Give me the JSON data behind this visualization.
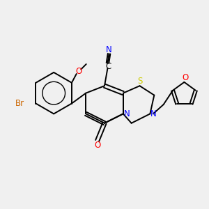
{
  "background_color": "#f0f0f0",
  "bond_color": "#000000",
  "atom_colors": {
    "N": "#0000ff",
    "O": "#ff0000",
    "S": "#cccc00",
    "Br": "#cc6600",
    "C": "#000000"
  },
  "lw": 1.4,
  "fs": 8.5
}
